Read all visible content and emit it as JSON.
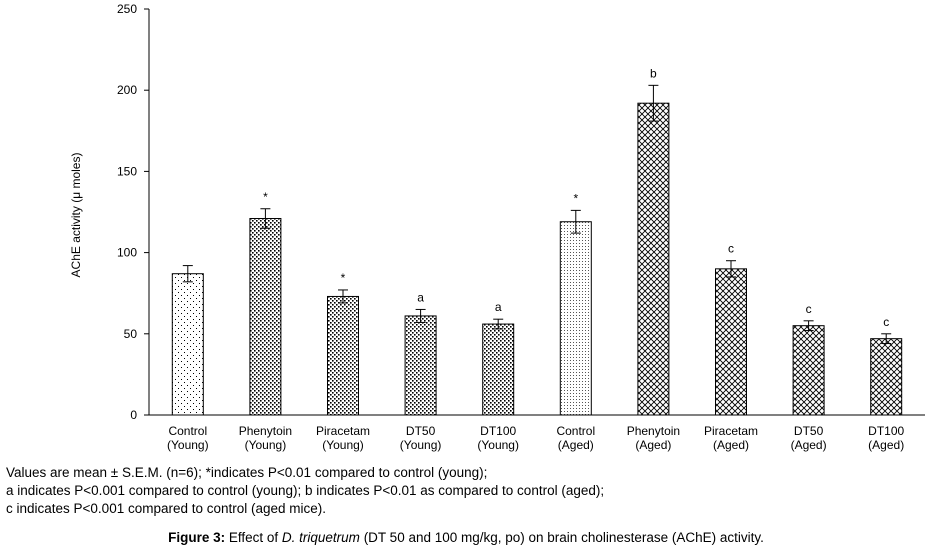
{
  "chart_data": {
    "type": "bar",
    "ylabel": "AChE  activity  (μ moles)",
    "ylim": [
      0,
      250
    ],
    "yticks": [
      0,
      50,
      100,
      150,
      200,
      250
    ],
    "categories": [
      [
        "Control",
        "(Young)"
      ],
      [
        "Phenytoin",
        "(Young)"
      ],
      [
        "Piracetam",
        "(Young)"
      ],
      [
        "DT50",
        "(Young)"
      ],
      [
        "DT100",
        "(Young)"
      ],
      [
        "Control",
        "(Aged)"
      ],
      [
        "Phenytoin",
        "(Aged)"
      ],
      [
        "Piracetam",
        "(Aged)"
      ],
      [
        "DT50",
        "(Aged)"
      ],
      [
        "DT100",
        "(Aged)"
      ]
    ],
    "values": [
      87,
      121,
      73,
      61,
      56,
      119,
      192,
      90,
      55,
      47
    ],
    "errors": [
      5,
      6,
      4,
      4,
      3,
      7,
      11,
      5,
      3,
      3
    ],
    "significance": [
      "",
      "*",
      "*",
      "a",
      "a",
      "*",
      "b",
      "c",
      "c",
      "c"
    ],
    "patterns": [
      "sparse-dots",
      "dense-dots",
      "dense-dots",
      "dense-dots",
      "dense-dots",
      "fine-dots",
      "crosshatch",
      "crosshatch",
      "crosshatch",
      "crosshatch"
    ]
  },
  "notes": [
    "Values are mean ± S.E.M. (n=6); *indicates P<0.01 compared to control (young);",
    "a indicates P<0.001 compared to control (young); b indicates P<0.01 as compared to control (aged);",
    "c indicates P<0.001 compared to control (aged mice)."
  ],
  "caption": {
    "label": "Figure 3:",
    "text_before": " Effect of ",
    "italic": "D. triquetrum",
    "text_after": " (DT 50 and 100 mg/kg, po) on brain cholinesterase (AChE) activity."
  }
}
